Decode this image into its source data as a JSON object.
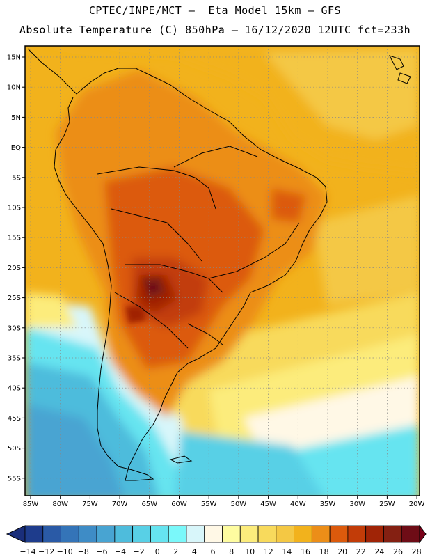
{
  "header": {
    "line1": "CPTEC/INPE/MCT –  Eta Model 15km – GFS",
    "line2": "Absolute Temperature (C) 850hPa – 16/12/2020 12UTC fct=233h"
  },
  "axes": {
    "lat_labels": [
      "15N",
      "10N",
      "5N",
      "EQ",
      "5S",
      "10S",
      "15S",
      "20S",
      "25S",
      "30S",
      "35S",
      "40S",
      "45S",
      "50S",
      "55S"
    ],
    "lon_labels": [
      "85W",
      "80W",
      "75W",
      "70W",
      "65W",
      "60W",
      "55W",
      "50W",
      "45W",
      "40W",
      "35W",
      "30W",
      "25W",
      "20W"
    ]
  },
  "legend": {
    "values": [
      "-14",
      "-12",
      "-10",
      "-8",
      "-6",
      "-4",
      "-2",
      "0",
      "2",
      "4",
      "6",
      "8",
      "10",
      "12",
      "14",
      "16",
      "18",
      "20",
      "22",
      "24",
      "26",
      "28"
    ],
    "colors": [
      "#1e3c8c",
      "#2a5aa6",
      "#3474b8",
      "#3e8cc6",
      "#48a4d2",
      "#4ebcdc",
      "#58d0e6",
      "#66e4f0",
      "#7af8fa",
      "#d8f6fa",
      "#fff8e6",
      "#fefca0",
      "#fcec7c",
      "#f8da5c",
      "#f4c844",
      "#f2b21c",
      "#ec8e18",
      "#dc5a0c",
      "#c23c08",
      "#a02406",
      "#842012",
      "#6e0c16"
    ],
    "under_color": "#1a2e7a",
    "over_color": "#780018"
  }
}
